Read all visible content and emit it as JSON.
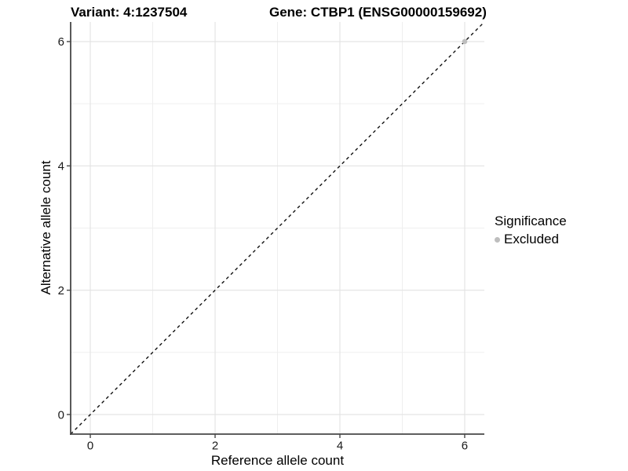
{
  "header": {
    "variant_title": "Variant: 4:1237504",
    "gene_title": "Gene: CTBP1 (ENSG00000159692)"
  },
  "chart_data": {
    "type": "scatter",
    "title": "Variant: 4:1237504    Gene: CTBP1 (ENSG00000159692)",
    "xlabel": "Reference allele count",
    "ylabel": "Alternative allele count",
    "xlim": [
      -0.315,
      6.315
    ],
    "ylim": [
      -0.315,
      6.315
    ],
    "xticks": [
      0,
      2,
      4,
      6
    ],
    "yticks": [
      0,
      2,
      4,
      6
    ],
    "xminor": [
      1,
      3,
      5
    ],
    "yminor": [
      1,
      3,
      5
    ],
    "grid": "major-and-minor",
    "points": [
      {
        "x": 6,
        "y": 6,
        "series": "Excluded"
      }
    ],
    "identity_line": {
      "slope": 1,
      "intercept": 0,
      "style": "dashed"
    },
    "legend": {
      "position": "right",
      "title": "Significance",
      "items": [
        {
          "label": "Excluded",
          "color": "#bebebe"
        }
      ]
    },
    "colors": {
      "point": "#bebebe",
      "dashed_line": "#111111",
      "grid_major": "#e2e2e2",
      "grid_minor": "#efefef",
      "axis_line": "#474747",
      "tick_text": "#1a1a1a"
    }
  }
}
